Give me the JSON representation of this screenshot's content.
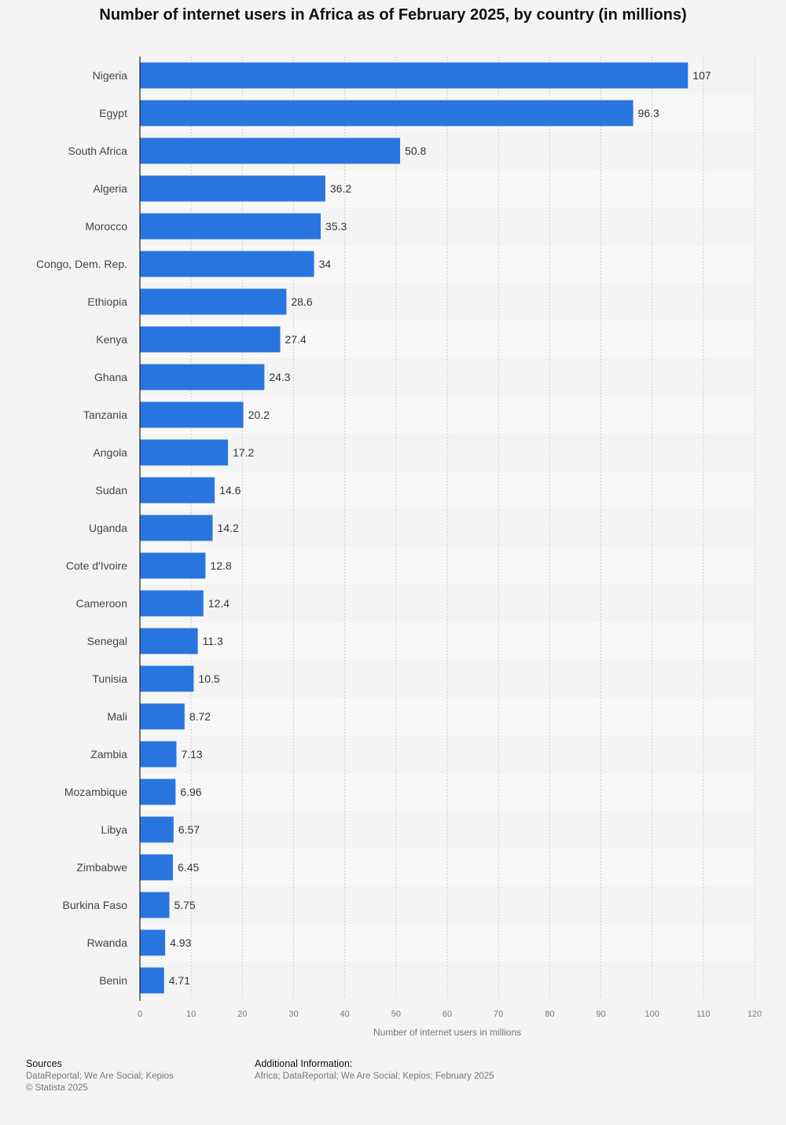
{
  "title": "Number of internet users in Africa as of February 2025, by country (in millions)",
  "chart_data": {
    "type": "bar",
    "orientation": "horizontal",
    "categories": [
      "Nigeria",
      "Egypt",
      "South Africa",
      "Algeria",
      "Morocco",
      "Congo, Dem. Rep.",
      "Ethiopia",
      "Kenya",
      "Ghana",
      "Tanzania",
      "Angola",
      "Sudan",
      "Uganda",
      "Cote d'Ivoire",
      "Cameroon",
      "Senegal",
      "Tunisia",
      "Mali",
      "Zambia",
      "Mozambique",
      "Libya",
      "Zimbabwe",
      "Burkina Faso",
      "Rwanda",
      "Benin"
    ],
    "values": [
      107,
      96.3,
      50.8,
      36.2,
      35.3,
      34,
      28.6,
      27.4,
      24.3,
      20.2,
      17.2,
      14.6,
      14.2,
      12.8,
      12.4,
      11.3,
      10.5,
      8.72,
      7.13,
      6.96,
      6.57,
      6.45,
      5.75,
      4.93,
      4.71
    ],
    "value_labels": [
      "107",
      "96.3",
      "50.8",
      "36.2",
      "35.3",
      "34",
      "28.6",
      "27.4",
      "24.3",
      "20.2",
      "17.2",
      "14.6",
      "14.2",
      "12.8",
      "12.4",
      "11.3",
      "10.5",
      "8.72",
      "7.13",
      "6.96",
      "6.57",
      "6.45",
      "5.75",
      "4.93",
      "4.71"
    ],
    "xlabel": "Number of internet users in millions",
    "xlim": [
      0,
      120
    ],
    "xticks": [
      0,
      10,
      20,
      30,
      40,
      50,
      60,
      70,
      80,
      90,
      100,
      110,
      120
    ],
    "grid": true,
    "bar_color": "#2875e0"
  },
  "footer": {
    "sources_heading": "Sources",
    "sources_text": "DataReportal; We Are Social; Kepios",
    "copyright": "© Statista 2025",
    "additional_heading": "Additional Information:",
    "additional_text": "Africa; DataReportal; We Are Social; Kepios; February 2025"
  }
}
